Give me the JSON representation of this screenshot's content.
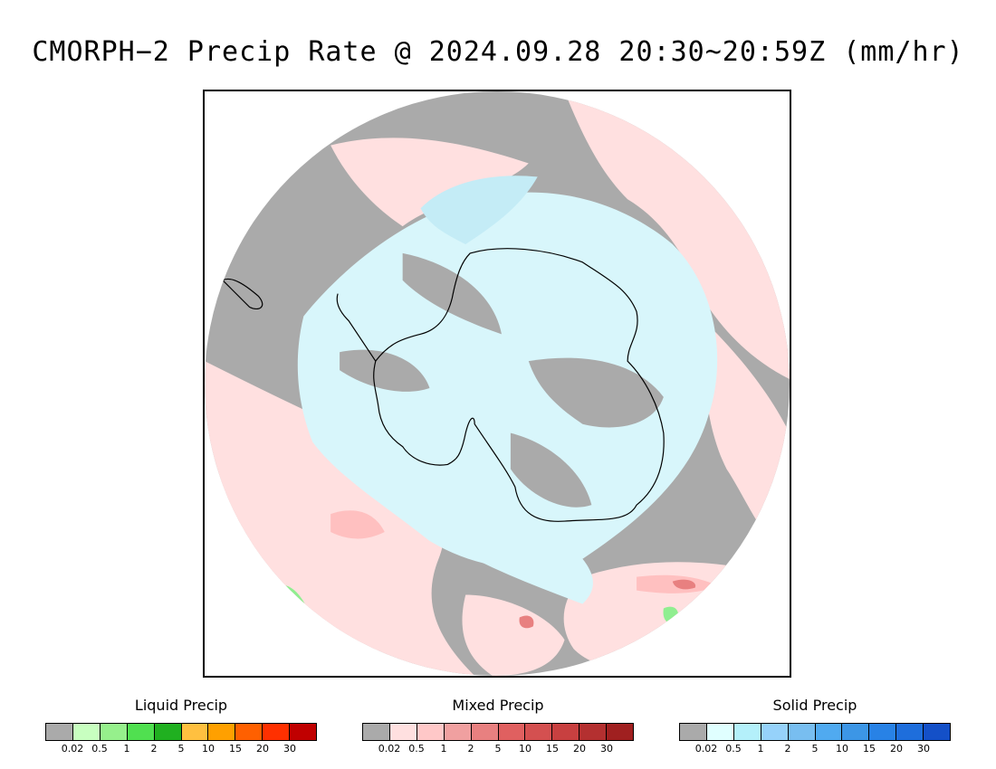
{
  "title": "CMORPH−2 Precip Rate @ 2024.09.28 20:30~20:59Z (mm/hr)",
  "map": {
    "projection": "south-polar-stereographic",
    "colors": {
      "gray": "#aaaaaa",
      "mixed_light": "#ffe0e0",
      "mixed_mid": "#ffc0c0",
      "mixed_dark": "#e88080",
      "solid_light": "#d8f6fb",
      "solid_mid": "#c4ecf6",
      "liquid_light": "#90ee90",
      "liquid_mid": "#4ce34c",
      "coast": "#000000"
    }
  },
  "legends": [
    {
      "title": "Liquid Precip",
      "colors": [
        "#aaaaaa",
        "#c8ffc0",
        "#96f08c",
        "#50e050",
        "#20b020",
        "#ffc040",
        "#ffa000",
        "#ff6000",
        "#ff3000",
        "#c00000"
      ],
      "ticks": [
        "0.02",
        "0.5",
        "1",
        "2",
        "5",
        "10",
        "15",
        "20",
        "30"
      ]
    },
    {
      "title": "Mixed Precip",
      "colors": [
        "#aaaaaa",
        "#ffe0e0",
        "#ffc8c8",
        "#f0a0a0",
        "#e88080",
        "#e06060",
        "#d45050",
        "#c84040",
        "#b43030",
        "#a02020"
      ],
      "ticks": [
        "0.02",
        "0.5",
        "1",
        "2",
        "5",
        "10",
        "15",
        "20",
        "30"
      ]
    },
    {
      "title": "Solid Precip",
      "colors": [
        "#aaaaaa",
        "#e0ffff",
        "#b4f0fa",
        "#96d2fa",
        "#78bef0",
        "#50aaf0",
        "#3c96e6",
        "#2882e6",
        "#1e6edc",
        "#1450c8"
      ],
      "ticks": [
        "0.02",
        "0.5",
        "1",
        "2",
        "5",
        "10",
        "15",
        "20",
        "30"
      ]
    }
  ]
}
